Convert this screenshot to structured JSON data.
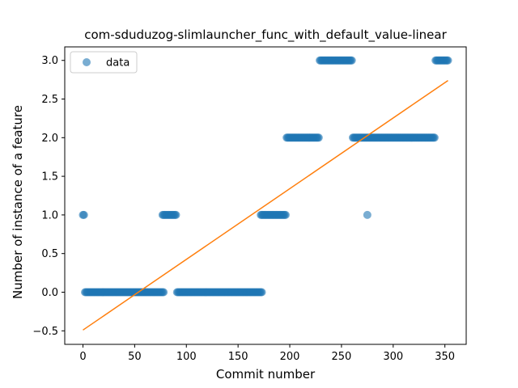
{
  "chart_data": {
    "type": "scatter",
    "title": "com-sduduzog-slimlauncher_func_with_default_value-linear",
    "xlabel": "Commit number",
    "ylabel": "Number of instance of a feature",
    "xlim": [
      -17.6,
      370.6
    ],
    "ylim": [
      -0.675,
      3.175
    ],
    "xticks": [
      0,
      50,
      100,
      150,
      200,
      250,
      300,
      350
    ],
    "xtick_labels": [
      "0",
      "50",
      "100",
      "150",
      "200",
      "250",
      "300",
      "350"
    ],
    "yticks": [
      -0.5,
      0.0,
      0.5,
      1.0,
      1.5,
      2.0,
      2.5,
      3.0
    ],
    "ytick_labels": [
      "−0.5",
      "0.0",
      "0.5",
      "1.0",
      "1.5",
      "2.0",
      "2.5",
      "3.0"
    ],
    "grid": false,
    "legend": {
      "position": "upper-left",
      "entries": [
        "data"
      ]
    },
    "scatter_series": {
      "name": "data",
      "color": "#1f77b4",
      "alpha": 0.6,
      "runs": [
        {
          "x_start": 0,
          "x_end": 1,
          "y": 1
        },
        {
          "x_start": 2,
          "x_end": 78,
          "y": 0
        },
        {
          "x_start": 77,
          "x_end": 90,
          "y": 1
        },
        {
          "x_start": 91,
          "x_end": 173,
          "y": 0
        },
        {
          "x_start": 172,
          "x_end": 196,
          "y": 1
        },
        {
          "x_start": 197,
          "x_end": 228,
          "y": 2
        },
        {
          "x_start": 229,
          "x_end": 260,
          "y": 3
        },
        {
          "x_start": 261,
          "x_end": 340,
          "y": 2
        },
        {
          "x_start": 275,
          "x_end": 275,
          "y": 1
        },
        {
          "x_start": 341,
          "x_end": 353,
          "y": 3
        }
      ]
    },
    "fit_line": {
      "color": "#ff7f0e",
      "points": [
        [
          0,
          -0.49
        ],
        [
          353,
          2.74
        ]
      ]
    }
  }
}
